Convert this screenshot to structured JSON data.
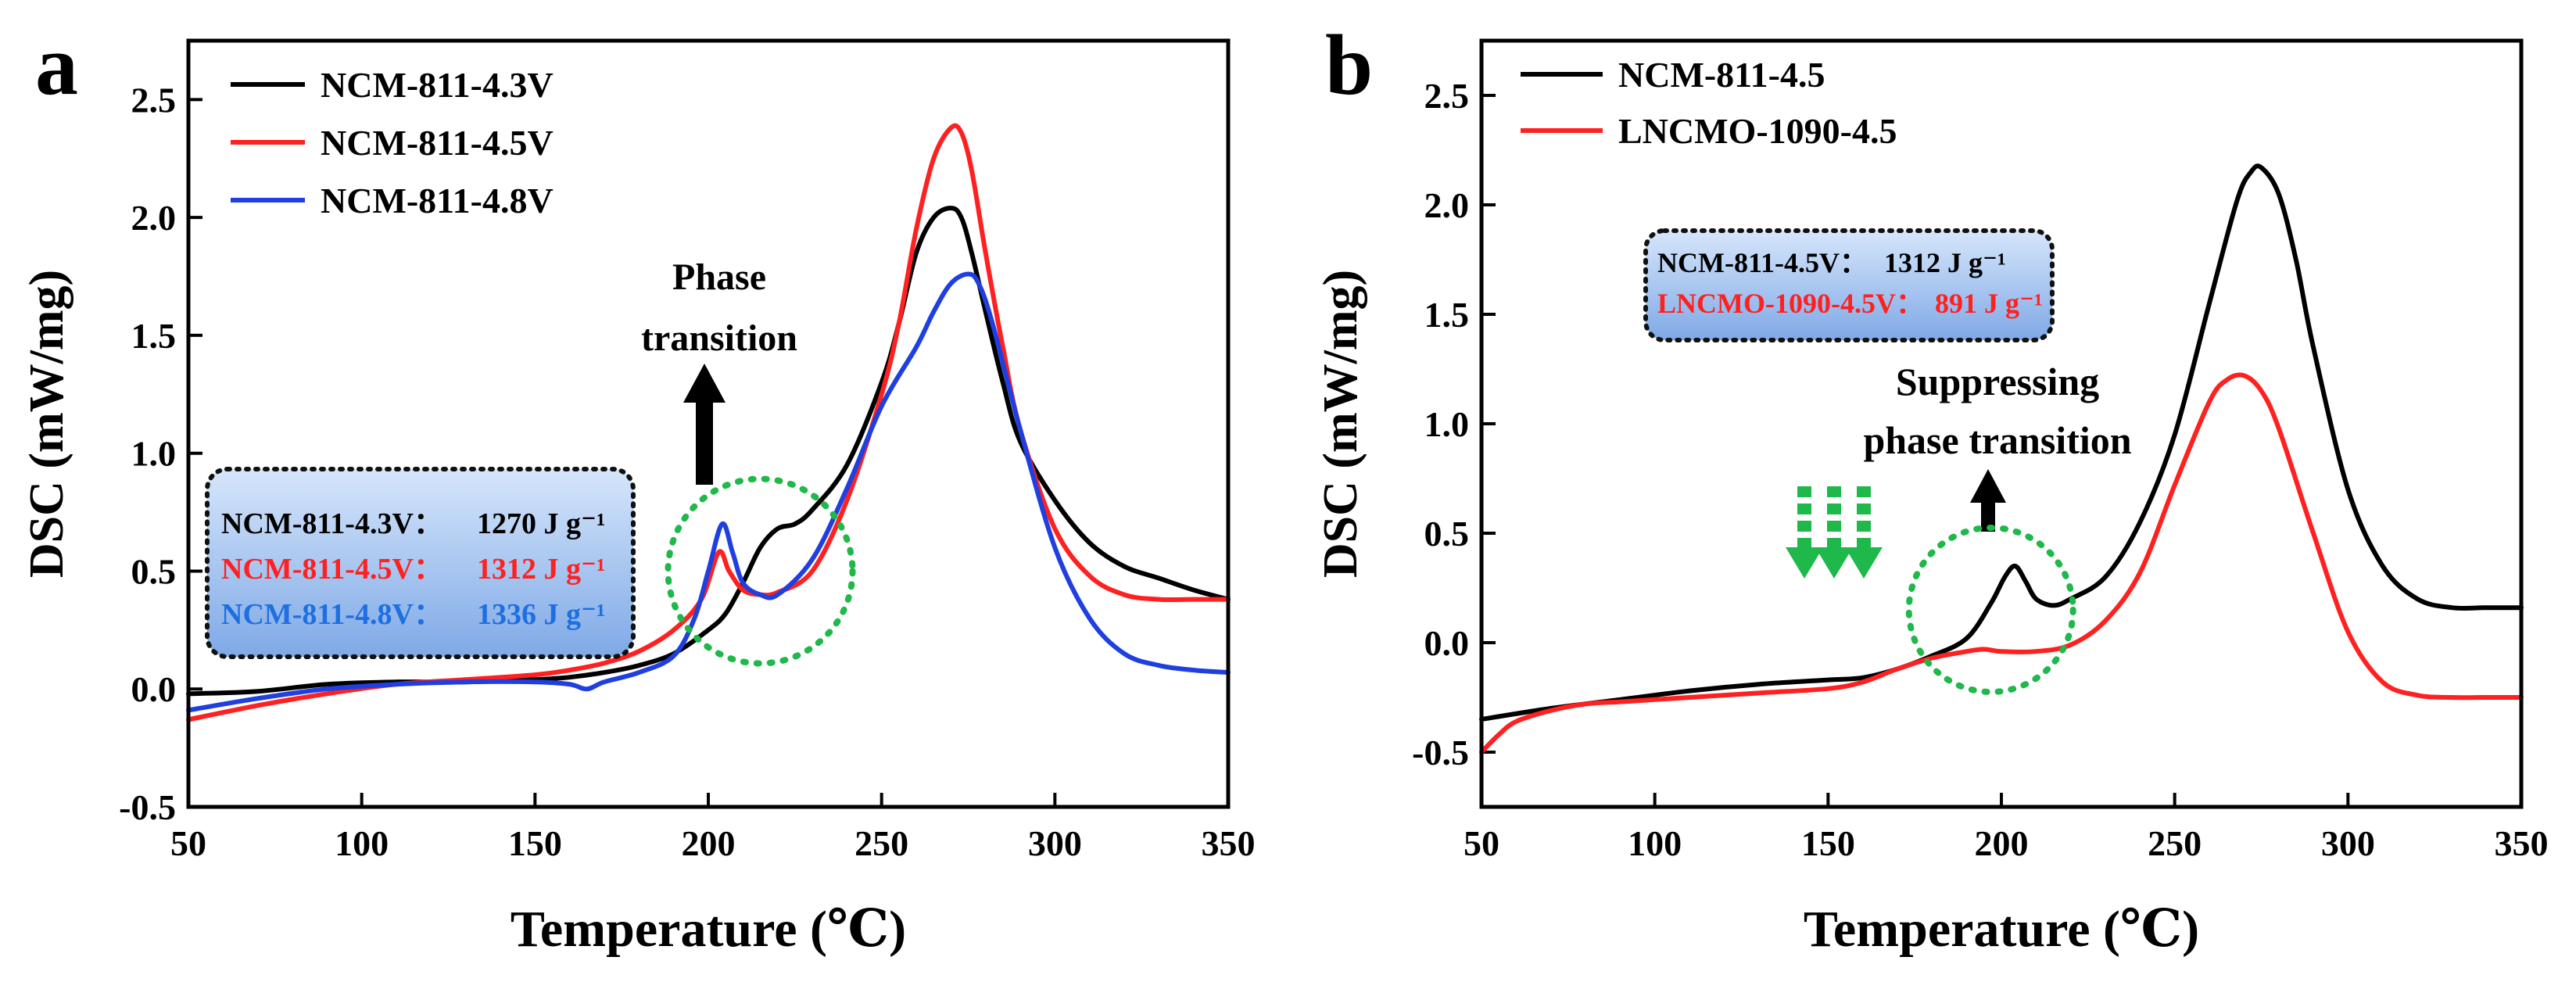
{
  "chart_data": [
    {
      "panel_label": "a",
      "type": "line",
      "title": "",
      "xlabel": "Temperature (℃)",
      "ylabel": "DSC (mW/mg)",
      "xlim": [
        50,
        350
      ],
      "ylim": [
        -0.5,
        2.75
      ],
      "xticks": [
        50,
        100,
        150,
        200,
        250,
        300,
        350
      ],
      "yticks": [
        -0.5,
        0.0,
        0.5,
        1.0,
        1.5,
        2.0,
        2.5
      ],
      "grid": false,
      "legend_position": "top-left",
      "series": [
        {
          "name": "NCM-811-4.3V",
          "color": "#000000",
          "x": [
            50,
            70,
            90,
            110,
            130,
            150,
            160,
            170,
            180,
            190,
            200,
            205,
            210,
            215,
            220,
            225,
            230,
            240,
            250,
            255,
            260,
            265,
            270,
            273,
            276,
            280,
            285,
            290,
            300,
            310,
            320,
            330,
            340,
            350
          ],
          "y": [
            -0.02,
            -0.01,
            0.02,
            0.03,
            0.03,
            0.04,
            0.05,
            0.07,
            0.1,
            0.15,
            0.25,
            0.32,
            0.45,
            0.6,
            0.68,
            0.7,
            0.76,
            0.95,
            1.3,
            1.55,
            1.85,
            2.0,
            2.04,
            2.0,
            1.85,
            1.6,
            1.3,
            1.05,
            0.8,
            0.62,
            0.52,
            0.47,
            0.42,
            0.38
          ]
        },
        {
          "name": "NCM-811-4.5V",
          "color": "#ff2020",
          "x": [
            50,
            70,
            90,
            110,
            130,
            150,
            160,
            170,
            180,
            190,
            198,
            203,
            206,
            210,
            215,
            220,
            230,
            240,
            250,
            255,
            260,
            265,
            270,
            273,
            276,
            280,
            285,
            290,
            300,
            310,
            320,
            330,
            340,
            350
          ],
          "y": [
            -0.13,
            -0.07,
            -0.02,
            0.02,
            0.04,
            0.06,
            0.08,
            0.11,
            0.16,
            0.25,
            0.38,
            0.58,
            0.5,
            0.42,
            0.4,
            0.41,
            0.5,
            0.8,
            1.25,
            1.55,
            1.95,
            2.25,
            2.38,
            2.36,
            2.2,
            1.85,
            1.45,
            1.1,
            0.68,
            0.48,
            0.4,
            0.38,
            0.38,
            0.38
          ]
        },
        {
          "name": "NCM-811-4.8V",
          "color": "#1f3fe0",
          "x": [
            50,
            70,
            90,
            110,
            130,
            150,
            160,
            165,
            170,
            180,
            190,
            196,
            200,
            204,
            207,
            210,
            215,
            220,
            230,
            240,
            250,
            260,
            265,
            270,
            275,
            278,
            282,
            290,
            300,
            310,
            320,
            330,
            340,
            350
          ],
          "y": [
            -0.09,
            -0.04,
            0.0,
            0.02,
            0.03,
            0.03,
            0.02,
            0.0,
            0.03,
            0.07,
            0.14,
            0.3,
            0.5,
            0.7,
            0.58,
            0.45,
            0.4,
            0.4,
            0.55,
            0.85,
            1.2,
            1.45,
            1.6,
            1.72,
            1.76,
            1.72,
            1.55,
            1.1,
            0.6,
            0.3,
            0.15,
            0.1,
            0.08,
            0.07
          ]
        }
      ],
      "annotations": {
        "phase_label_line1": "Phase",
        "phase_label_line2": "transition",
        "energy_box": [
          {
            "label": "NCM-811-4.3V：",
            "value": "1270 J g⁻¹",
            "color": "#000000"
          },
          {
            "label": "NCM-811-4.5V：",
            "value": "1312 J g⁻¹",
            "color": "#ff2020"
          },
          {
            "label": "NCM-811-4.8V：",
            "value": "1336 J g⁻¹",
            "color": "#1e6fe0"
          }
        ],
        "circle_center": [
          215,
          0.5
        ]
      }
    },
    {
      "panel_label": "b",
      "type": "line",
      "title": "",
      "xlabel": "Temperature (℃)",
      "ylabel": "DSC (mW/mg)",
      "xlim": [
        50,
        350
      ],
      "ylim": [
        -0.75,
        2.75
      ],
      "xticks": [
        50,
        100,
        150,
        200,
        250,
        300,
        350
      ],
      "yticks": [
        -0.5,
        0.0,
        0.5,
        1.0,
        1.5,
        2.0,
        2.5
      ],
      "grid": false,
      "legend_position": "top-left",
      "series": [
        {
          "name": "NCM-811-4.5",
          "color": "#000000",
          "x": [
            50,
            70,
            90,
            110,
            130,
            150,
            160,
            170,
            180,
            190,
            197,
            201,
            204,
            207,
            210,
            215,
            220,
            230,
            240,
            250,
            260,
            268,
            272,
            275,
            280,
            285,
            290,
            300,
            310,
            320,
            330,
            340,
            350
          ],
          "y": [
            -0.35,
            -0.3,
            -0.26,
            -0.22,
            -0.19,
            -0.17,
            -0.16,
            -0.12,
            -0.06,
            0.02,
            0.18,
            0.3,
            0.35,
            0.28,
            0.2,
            0.17,
            0.2,
            0.3,
            0.55,
            0.95,
            1.55,
            2.02,
            2.15,
            2.17,
            2.05,
            1.75,
            1.35,
            0.7,
            0.35,
            0.2,
            0.16,
            0.16,
            0.16
          ]
        },
        {
          "name": "LNCMO-1090-4.5",
          "color": "#ff2020",
          "x": [
            50,
            55,
            60,
            70,
            80,
            90,
            100,
            110,
            130,
            150,
            160,
            170,
            180,
            190,
            195,
            200,
            210,
            220,
            230,
            240,
            250,
            260,
            265,
            270,
            275,
            280,
            290,
            300,
            310,
            320,
            330,
            340,
            350
          ],
          "y": [
            -0.5,
            -0.42,
            -0.36,
            -0.31,
            -0.28,
            -0.27,
            -0.26,
            -0.25,
            -0.23,
            -0.21,
            -0.18,
            -0.12,
            -0.07,
            -0.04,
            -0.03,
            -0.04,
            -0.04,
            -0.01,
            0.1,
            0.32,
            0.72,
            1.1,
            1.2,
            1.22,
            1.15,
            0.98,
            0.5,
            0.05,
            -0.18,
            -0.24,
            -0.25,
            -0.25,
            -0.25
          ]
        }
      ],
      "annotations": {
        "suppress_label_line1": "Suppressing",
        "suppress_label_line2": "phase transition",
        "energy_box": [
          {
            "label": "NCM-811-4.5V：",
            "value": "1312 J g⁻¹",
            "color": "#000000"
          },
          {
            "label": "LNCMO-1090-4.5V：",
            "value": "891 J g⁻¹",
            "color": "#ff2020"
          }
        ],
        "circle_center": [
          197,
          0.15
        ]
      }
    }
  ],
  "colors": {
    "axis": "#000000",
    "dotted_circle": "#1fb84a",
    "green_arrows": "#1fb84a",
    "box_gradient_top": "#d6e6fb",
    "box_gradient_bottom": "#7fa9e6"
  }
}
